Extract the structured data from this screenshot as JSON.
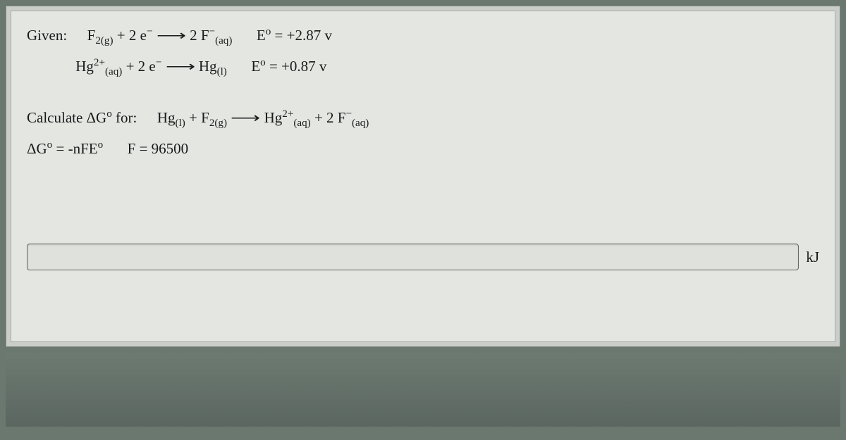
{
  "given_label": "Given:",
  "eq1": {
    "lhs_sp1": "F",
    "lhs_sub1": "2(g)",
    "plus": " + 2 e",
    "sup_e": "−",
    "rhs_coef": "2 F",
    "rhs_sup": "−",
    "rhs_sub": "(aq)",
    "e0_label": "E",
    "e0_sup": "o",
    "e0_val": " = +2.87 v"
  },
  "eq2": {
    "lhs_sp1": "Hg",
    "lhs_sup1": "2+",
    "lhs_sub1": "(aq)",
    "plus": " + 2 e",
    "sup_e": "−",
    "rhs": "Hg",
    "rhs_sub": "(l)",
    "e0_label": "E",
    "e0_sup": "o",
    "e0_val": " = +0.87 v"
  },
  "calc_label": "Calculate ΔG",
  "calc_sup": "o",
  "calc_for": " for:",
  "eq3": {
    "l1": "Hg",
    "l1_sub": "(l)",
    "plus": " + F",
    "l2_sub": "2(g)",
    "r1": "Hg",
    "r1_sup": "2+",
    "r1_sub": "(aq)",
    "plus2": " + 2 F",
    "r2_sup": "−",
    "r2_sub": "(aq)"
  },
  "formula": {
    "dg": "ΔG",
    "dg_sup": "o",
    "eq": " = -nFE",
    "eq_sup": "o",
    "f_label": "F = 96500"
  },
  "answer_value": "",
  "unit": "kJ"
}
